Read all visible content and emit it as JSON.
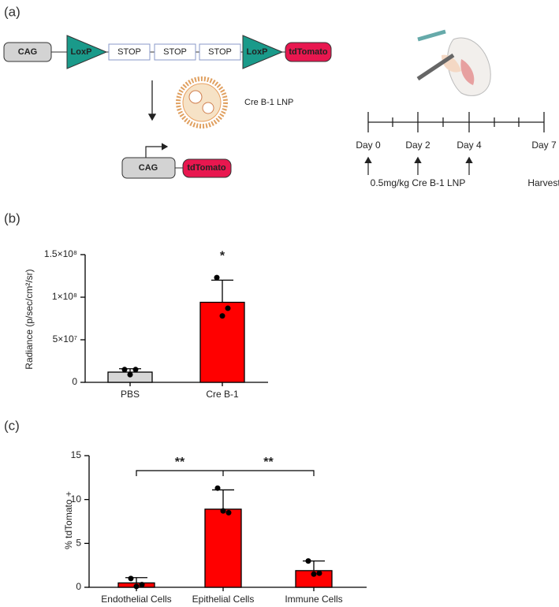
{
  "figure": {
    "panel_labels": [
      "(a)",
      "(b)",
      "(c)"
    ],
    "construct": {
      "promoter": "CAG",
      "loxp": [
        "LoxP",
        "LoxP"
      ],
      "stop": [
        "STOP",
        "STOP",
        "STOP"
      ],
      "reporter": "tdTomato"
    },
    "lnp": "Cre B-1 LNP",
    "result": {
      "promoter": "CAG",
      "reporter": "tdTomato"
    },
    "timeline": {
      "days": [
        "Day 0",
        "Day 2",
        "Day 4",
        "Day 7"
      ],
      "dose": "0.5mg/kg Cre B-1 LNP",
      "end": "Harvest"
    }
  },
  "chart_data": [
    {
      "type": "bar",
      "y_label": "Radiance  (p/sec/cm²/sr)",
      "categories": [
        "PBS",
        "Cre B-1"
      ],
      "colors": [
        "#d6d6d6",
        "#ff0000"
      ],
      "values": [
        12000000,
        94000000
      ],
      "errors": [
        4000000,
        26000000
      ],
      "points": [
        [
          15000000,
          15000000,
          9000000
        ],
        [
          123000000,
          87000000,
          78000000
        ]
      ],
      "annotations": [
        "*"
      ],
      "ylim": [
        0,
        150000000
      ],
      "yticks": [
        0,
        {
          "value": 50000000,
          "label": "5×10⁷"
        },
        {
          "value": 100000000,
          "label": "1×10⁸"
        },
        {
          "value": 150000000,
          "label": "1.5×10⁸"
        }
      ]
    },
    {
      "type": "bar",
      "y_label": "% tdTomato +",
      "categories": [
        "Endothelial Cells",
        "Epithelial Cells",
        "Immune Cells"
      ],
      "colors": [
        "#ff0000",
        "#ff0000",
        "#ff0000"
      ],
      "values": [
        0.5,
        8.9,
        1.9
      ],
      "errors": [
        0.6,
        2.2,
        1.1
      ],
      "points": [
        [
          1.0,
          0.3,
          0.1
        ],
        [
          11.3,
          8.5,
          8.7
        ],
        [
          3.0,
          1.6,
          1.5
        ]
      ],
      "annotations": [
        "**",
        "**"
      ],
      "ylim": [
        0,
        15
      ],
      "yticks": [
        0,
        5,
        10,
        15
      ]
    }
  ]
}
